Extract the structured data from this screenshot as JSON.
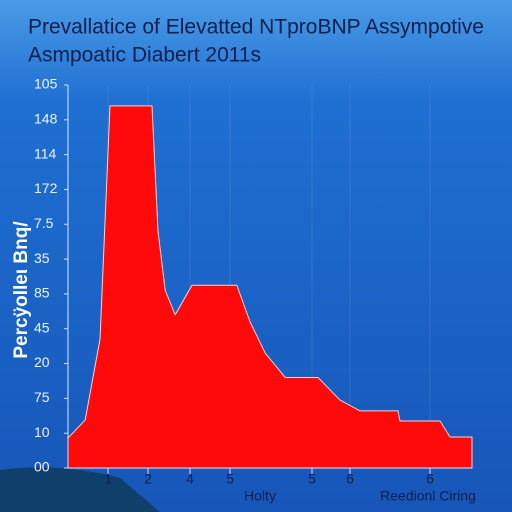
{
  "chart_data": {
    "type": "area",
    "title": "Prevallatice of Elevatted NTproBNP Assympotive",
    "subtitle": "Asmpoatic Diabert 2011s",
    "ylabel": "Percÿolleι Bnq/",
    "annotations": [
      "Holty",
      "Reedionl Ciring"
    ],
    "x": [
      0,
      0.43,
      0.8,
      1.05,
      2.1,
      2.25,
      2.43,
      2.68,
      3.1,
      4.22,
      4.55,
      4.93,
      5.43,
      6.25,
      6.8,
      7.3,
      8.25,
      8.3,
      9.3,
      9.55,
      10.1
    ],
    "values": [
      0.86,
      1.38,
      3.7,
      10.4,
      10.4,
      6.8,
      5.1,
      4.4,
      5.25,
      5.25,
      4.2,
      3.3,
      2.6,
      2.6,
      1.95,
      1.64,
      1.64,
      1.35,
      1.35,
      0.89,
      0.89
    ],
    "color": "#ff0a0a",
    "xlim": [
      0,
      10.1
    ],
    "ylim": [
      0,
      11
    ],
    "xticks": [
      {
        "value": 1,
        "label": "1"
      },
      {
        "value": 2,
        "label": "2"
      },
      {
        "value": 3.05,
        "label": "4"
      },
      {
        "value": 4.05,
        "label": "5"
      },
      {
        "value": 6.1,
        "label": "5"
      },
      {
        "value": 7.05,
        "label": "6"
      },
      {
        "value": 9.05,
        "label": "6"
      }
    ],
    "yticks": [
      {
        "value": 0,
        "label": "00"
      },
      {
        "value": 1,
        "label": "10"
      },
      {
        "value": 2,
        "label": "75"
      },
      {
        "value": 3,
        "label": "20"
      },
      {
        "value": 4,
        "label": "45"
      },
      {
        "value": 5,
        "label": "85"
      },
      {
        "value": 6,
        "label": "35"
      },
      {
        "value": 7,
        "label": "7.5"
      },
      {
        "value": 8,
        "label": "172"
      },
      {
        "value": 9,
        "label": "114"
      },
      {
        "value": 10,
        "label": "148"
      },
      {
        "value": 11,
        "label": "105"
      }
    ],
    "grid": true
  }
}
